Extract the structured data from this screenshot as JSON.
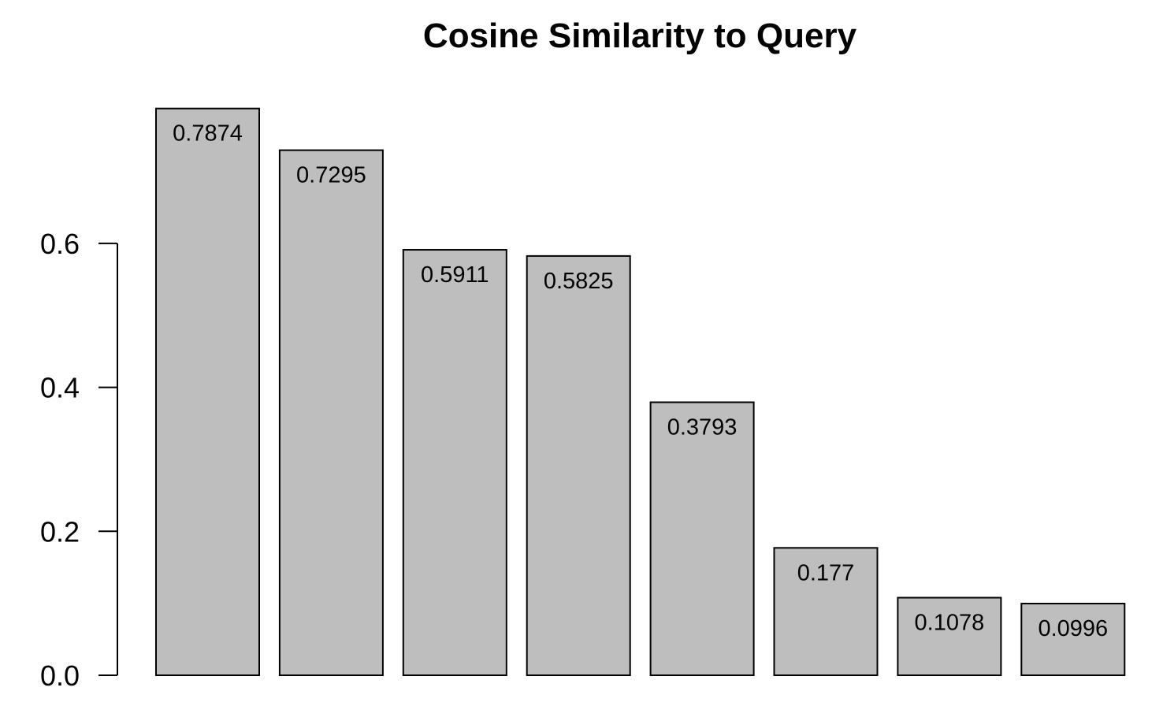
{
  "chart_data": {
    "type": "bar",
    "title": "Cosine Similarity to Query",
    "xlabel": "",
    "ylabel": "",
    "categories": [
      "",
      "",
      "",
      "",
      "",
      "",
      "",
      ""
    ],
    "values": [
      0.7874,
      0.7295,
      0.5911,
      0.5825,
      0.3793,
      0.177,
      0.1078,
      0.0996
    ],
    "data_labels": [
      "0.7874",
      "0.7295",
      "0.5911",
      "0.5825",
      "0.3793",
      "0.177",
      "0.1078",
      "0.0996"
    ],
    "ylim": [
      0,
      0.7874
    ],
    "yticks": [
      0.0,
      0.2,
      0.4,
      0.6
    ],
    "ytick_labels": [
      "0.0",
      "0.2",
      "0.4",
      "0.6"
    ],
    "grid": false,
    "legend": "none",
    "colors": {
      "bar_fill": "#bebebe",
      "bar_stroke": "#000000",
      "text": "#000000",
      "background": "#ffffff"
    }
  }
}
